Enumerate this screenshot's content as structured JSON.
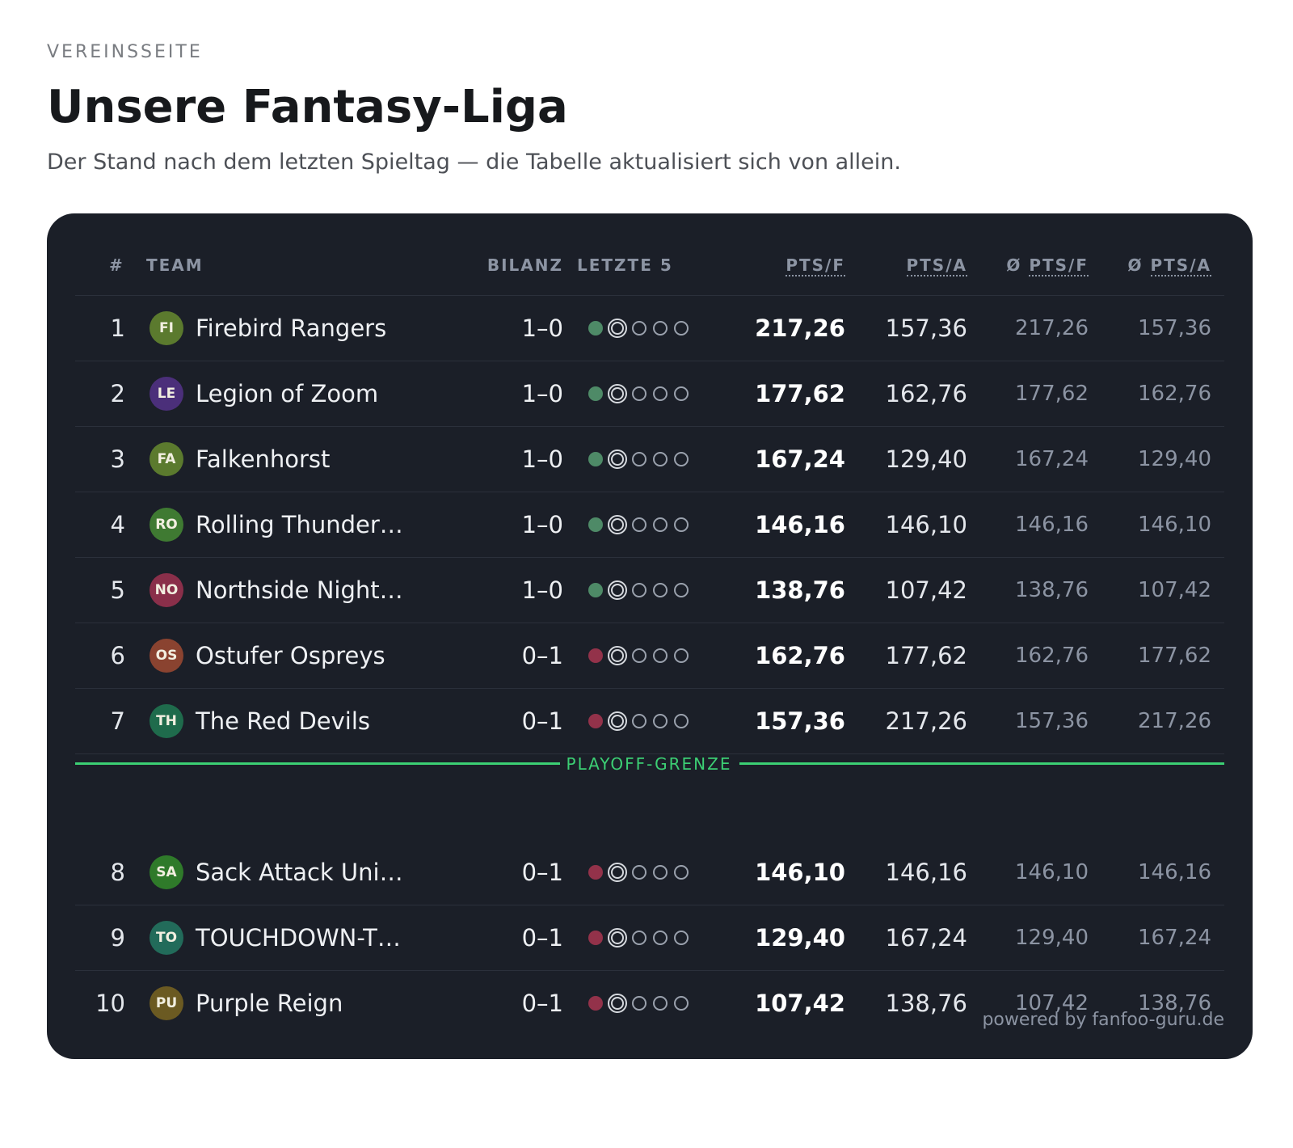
{
  "header": {
    "eyebrow": "VEREINSSEITE",
    "title": "Unsere Fantasy-Liga",
    "subtitle": "Der Stand nach dem letzten Spieltag — die Tabelle aktualisiert sich von allein."
  },
  "table": {
    "columns": {
      "rank": "#",
      "team": "TEAM",
      "record": "BILANZ",
      "form": "LETZTE 5",
      "pf": "PTS/F",
      "pa": "PTS/A",
      "avg_pf_prefix": "Ø",
      "avg_pf": "PTS/F",
      "avg_pa_prefix": "Ø",
      "avg_pa": "PTS/A"
    },
    "rows": [
      {
        "rank": "1",
        "badge": "FI",
        "badge_color": "#5b7a2e",
        "name": "Firebird Rangers",
        "record": "1–0",
        "result": "win",
        "pf": "217,26",
        "pa": "157,36",
        "avg_pf": "217,26",
        "avg_pa": "157,36"
      },
      {
        "rank": "2",
        "badge": "LE",
        "badge_color": "#4b2f7a",
        "name": "Legion of Zoom",
        "record": "1–0",
        "result": "win",
        "pf": "177,62",
        "pa": "162,76",
        "avg_pf": "177,62",
        "avg_pa": "162,76"
      },
      {
        "rank": "3",
        "badge": "FA",
        "badge_color": "#5b7a2e",
        "name": "Falkenhorst",
        "record": "1–0",
        "result": "win",
        "pf": "167,24",
        "pa": "129,40",
        "avg_pf": "167,24",
        "avg_pa": "129,40"
      },
      {
        "rank": "4",
        "badge": "RO",
        "badge_color": "#3f7a32",
        "name": "Rolling Thunder…",
        "record": "1–0",
        "result": "win",
        "pf": "146,16",
        "pa": "146,10",
        "avg_pf": "146,16",
        "avg_pa": "146,10"
      },
      {
        "rank": "5",
        "badge": "NO",
        "badge_color": "#8a2f4a",
        "name": "Northside Night…",
        "record": "1–0",
        "result": "win",
        "pf": "138,76",
        "pa": "107,42",
        "avg_pf": "138,76",
        "avg_pa": "107,42"
      },
      {
        "rank": "6",
        "badge": "OS",
        "badge_color": "#8a4330",
        "name": "Ostufer Ospreys",
        "record": "0–1",
        "result": "loss",
        "pf": "162,76",
        "pa": "177,62",
        "avg_pf": "162,76",
        "avg_pa": "177,62"
      },
      {
        "rank": "7",
        "badge": "TH",
        "badge_color": "#1f6b4c",
        "name": "The Red Devils",
        "record": "0–1",
        "result": "loss",
        "pf": "157,36",
        "pa": "217,26",
        "avg_pf": "157,36",
        "avg_pa": "217,26"
      },
      {
        "rank": "8",
        "badge": "SA",
        "badge_color": "#2f7a2a",
        "name": "Sack Attack Uni…",
        "record": "0–1",
        "result": "loss",
        "pf": "146,10",
        "pa": "146,16",
        "avg_pf": "146,10",
        "avg_pa": "146,16"
      },
      {
        "rank": "9",
        "badge": "TO",
        "badge_color": "#226b5a",
        "name": "TOUCHDOWN-T…",
        "record": "0–1",
        "result": "loss",
        "pf": "129,40",
        "pa": "167,24",
        "avg_pf": "129,40",
        "avg_pa": "167,24"
      },
      {
        "rank": "10",
        "badge": "PU",
        "badge_color": "#6b5a22",
        "name": "Purple Reign",
        "record": "0–1",
        "result": "loss",
        "pf": "107,42",
        "pa": "138,76",
        "avg_pf": "107,42",
        "avg_pa": "138,76"
      }
    ],
    "playoff_label": "PLAYOFF-GRENZE",
    "playoff_after_rank": 7
  },
  "colors": {
    "win": "#4e8a67",
    "loss": "#93324a",
    "badge_text": "#f2efe0",
    "playoff": "#3ccf74"
  },
  "footer": "powered by fanfoo-guru.de"
}
